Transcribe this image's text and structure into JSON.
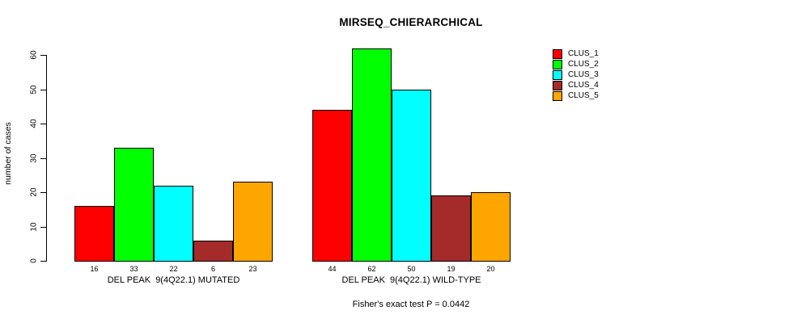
{
  "caption": "Fisher's exact test P = 0.0442",
  "chart_data": {
    "type": "bar",
    "title": "MIRSEQ_CHIERARCHICAL",
    "xlabel": "",
    "ylabel": "number of cases",
    "ylim": [
      0,
      62
    ],
    "yticks": [
      0,
      10,
      20,
      30,
      40,
      50,
      60
    ],
    "grid": false,
    "legend_position": "right",
    "value_labels_shown": true,
    "categories": [
      "DEL PEAK  9(4Q22.1) MUTATED",
      "DEL PEAK  9(4Q22.1) WILD-TYPE"
    ],
    "series": [
      {
        "name": "CLUS_1",
        "color": "#FF0000",
        "values": [
          16,
          44
        ]
      },
      {
        "name": "CLUS_2",
        "color": "#00FF00",
        "values": [
          33,
          62
        ]
      },
      {
        "name": "CLUS_3",
        "color": "#00FFFF",
        "values": [
          22,
          50
        ]
      },
      {
        "name": "CLUS_4",
        "color": "#A52A2A",
        "values": [
          6,
          19
        ]
      },
      {
        "name": "CLUS_5",
        "color": "#FFA500",
        "values": [
          23,
          20
        ]
      }
    ]
  }
}
